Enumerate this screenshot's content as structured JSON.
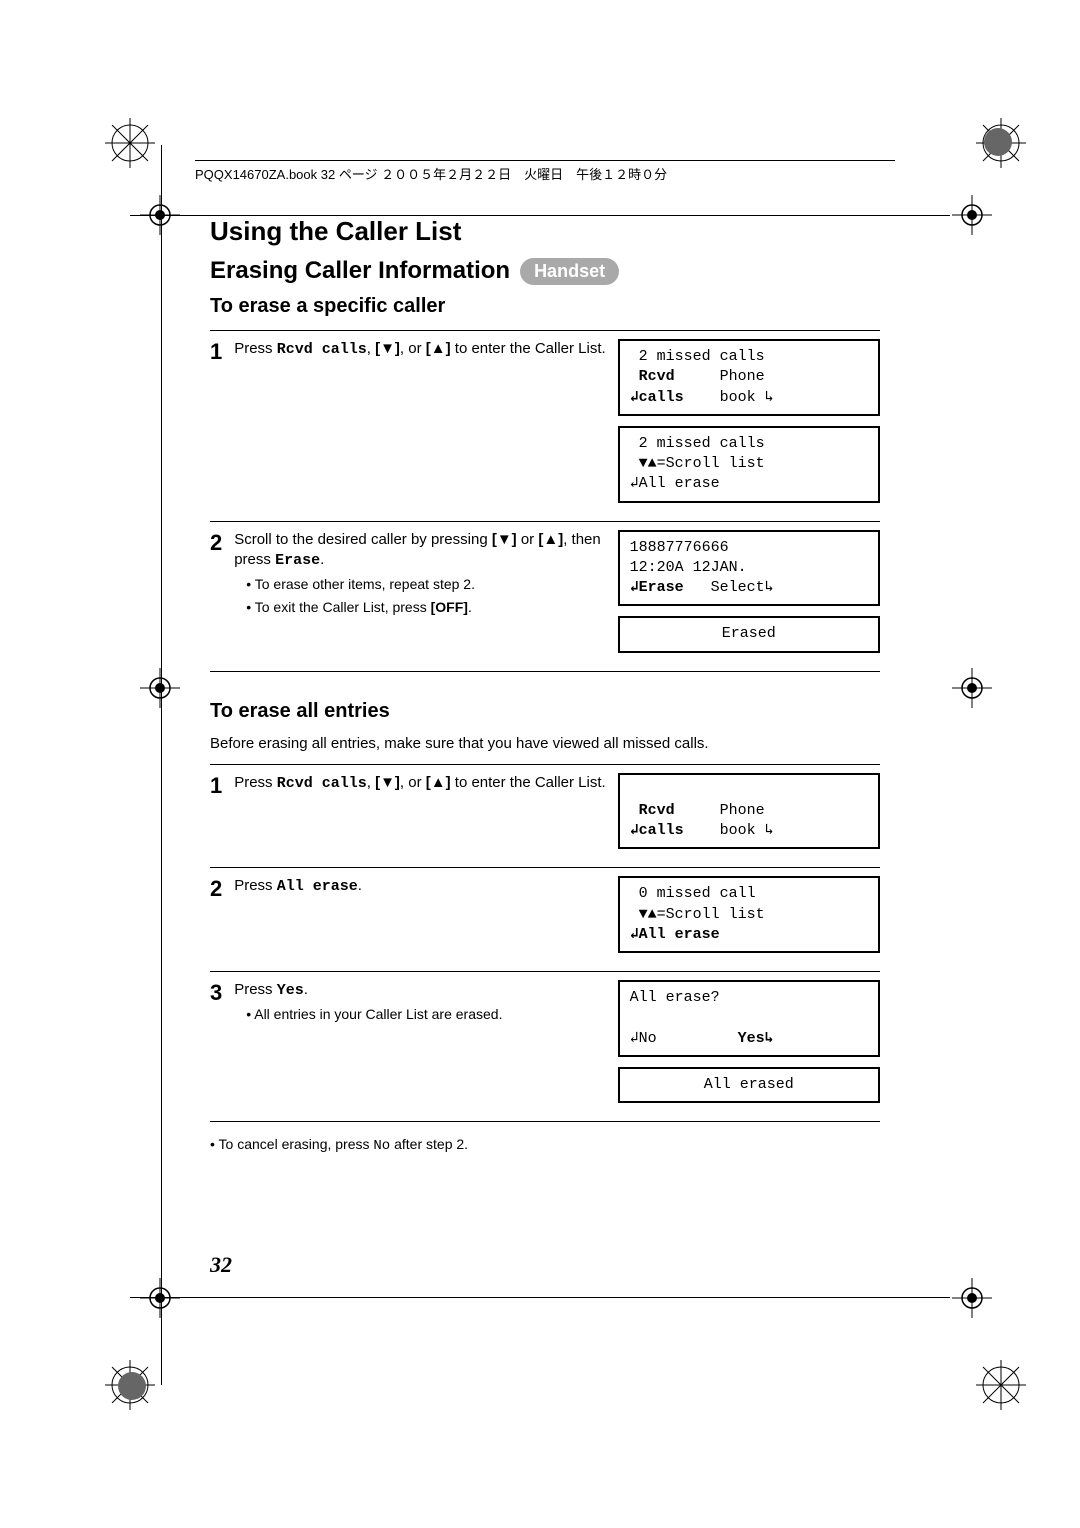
{
  "header": {
    "text": "PQQX14670ZA.book  32 ページ  ２００５年２月２２日　火曜日　午後１２時０分"
  },
  "title": "Using the Caller List",
  "section": {
    "heading": "Erasing Caller Information",
    "pill": "Handset"
  },
  "sub1": {
    "heading": "To erase a specific caller",
    "steps": [
      {
        "num": "1",
        "pre": "Press ",
        "mono": "Rcvd calls",
        "mid": ", ",
        "bold1": "[▼]",
        "mid2": ", or ",
        "bold2": "[▲]",
        "post": " to enter the Caller List.",
        "lcds": [
          " 2 missed calls\n <b>Rcvd</b>     Phone\n<b>↲calls</b>    book ↳",
          " 2 missed calls\n <b>▼▲</b>=Scroll list\n↲All erase"
        ]
      },
      {
        "num": "2",
        "pre": "Scroll to the desired caller by pressing ",
        "bold1": "[▼]",
        "mid": " or ",
        "bold2": "[▲]",
        "mid2": ", then press ",
        "mono": "Erase",
        "post": ".",
        "bullets": [
          "To erase other items, repeat step 2.",
          "To exit the Caller List, press [OFF]."
        ],
        "lcds": [
          "18887776666\n12:20A 12JAN.\n<b>↲Erase</b>   Select↳",
          "<center>Erased</center>"
        ]
      }
    ]
  },
  "sub2": {
    "heading": "To erase all entries",
    "intro": "Before erasing all entries, make sure that you have viewed all missed calls.",
    "steps": [
      {
        "num": "1",
        "pre": "Press ",
        "mono": "Rcvd calls",
        "mid": ", ",
        "bold1": "[▼]",
        "mid2": ", or ",
        "bold2": "[▲]",
        "post": " to enter the Caller List.",
        "lcds": [
          "\n <b>Rcvd</b>     Phone\n<b>↲calls</b>    book ↳"
        ]
      },
      {
        "num": "2",
        "pre": "Press ",
        "mono": "All erase",
        "post": ".",
        "lcds": [
          " 0 missed call\n <b>▼▲</b>=Scroll list\n<b>↲All erase</b>"
        ]
      },
      {
        "num": "3",
        "pre": "Press ",
        "mono": "Yes",
        "post": ".",
        "bullets": [
          "All entries in your Caller List are erased."
        ],
        "lcds": [
          "All erase?\n\n↲No         <b>Yes↳</b>",
          "<center>All erased</center>"
        ]
      }
    ],
    "note_pre": "• To cancel erasing, press ",
    "note_mono": "No",
    "note_post": " after step 2."
  },
  "pagenum": "32",
  "colors": {
    "pill_bg": "#a9a9a9",
    "pill_fg": "#ffffff",
    "circle": "#666666"
  }
}
